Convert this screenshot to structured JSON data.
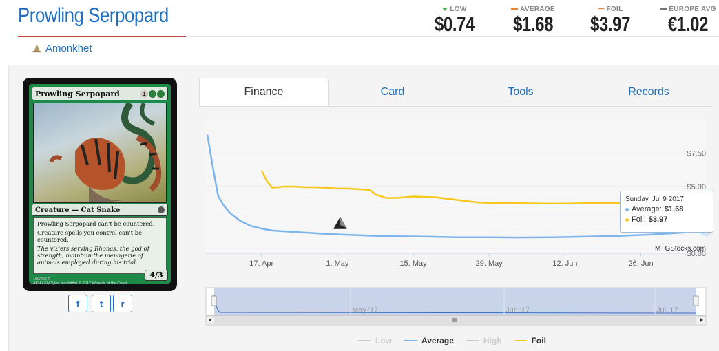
{
  "header": {
    "title": "Prowling Serpopard",
    "set_name": "Amonkhet"
  },
  "prices": [
    {
      "label": "LOW",
      "value": "$0.74",
      "indicator": "triangle-down",
      "color": "#4aa94a"
    },
    {
      "label": "AVERAGE",
      "value": "$1.68",
      "indicator": "bar",
      "color": "#e3873b"
    },
    {
      "label": "FOIL",
      "value": "$3.97",
      "indicator": "arc",
      "color": "#e3873b"
    },
    {
      "label": "EUROPE AVG",
      "value": "€1.02",
      "indicator": "bar",
      "color": "#777777"
    }
  ],
  "card": {
    "name": "Prowling Serpopard",
    "mana_generic": "1",
    "type_line": "Creature — Cat Snake",
    "rules_1": "Prowling Serpopard can't be countered.",
    "rules_2": "Creature spells you control can't be countered.",
    "flavor": "The viziers serving Rhonas, the god of strength, maintain the menagerie of animals employed during his trial.",
    "pt": "4/3",
    "collector": "180/269 R",
    "line2": "AKH • EN",
    "artist": "Tyler Jacobson",
    "copyright": "™ & © 2017 Wizards of the Coast"
  },
  "share": [
    {
      "icon": "facebook-icon",
      "glyph": "f"
    },
    {
      "icon": "twitter-icon",
      "glyph": "t"
    },
    {
      "icon": "reddit-icon",
      "glyph": "r"
    }
  ],
  "tabs": [
    "Finance",
    "Card",
    "Tools",
    "Records"
  ],
  "tooltip": {
    "date": "Sunday, Jul 9 2017",
    "average_label": "Average:",
    "average_value": "$1.68",
    "foil_label": "Foil:",
    "foil_value": "$3.97"
  },
  "credit": "MTGStocks.com",
  "legend": [
    {
      "name": "Low",
      "color": "#cccccc",
      "active": false
    },
    {
      "name": "Average",
      "color": "#7cb5ec",
      "active": true
    },
    {
      "name": "High",
      "color": "#cccccc",
      "active": false
    },
    {
      "name": "Foil",
      "color": "#f7c81e",
      "active": true
    }
  ],
  "chart_data": {
    "type": "line",
    "x_tick_labels": [
      "17. Apr",
      "1. May",
      "15. May",
      "29. May",
      "12. Jun",
      "26. Jun"
    ],
    "y_tick_labels": [
      "$7.50",
      "$5.00",
      "$2.50",
      "$0.00"
    ],
    "ylim": [
      0,
      10
    ],
    "navigator_labels": [
      "May '17",
      "Jun '17",
      "Jul '17"
    ],
    "series": [
      {
        "name": "Average",
        "color": "#7cb5ec",
        "x_days": [
          0,
          1,
          2,
          3,
          4,
          5,
          6,
          8,
          10,
          12,
          14,
          16,
          18,
          20,
          22,
          24,
          26,
          28,
          30,
          34,
          40,
          46,
          52,
          58,
          64,
          70,
          76,
          82,
          88,
          92
        ],
        "values": [
          8.9,
          6.5,
          4.3,
          3.6,
          3.1,
          2.75,
          2.45,
          2.05,
          1.85,
          1.7,
          1.65,
          1.6,
          1.55,
          1.5,
          1.45,
          1.42,
          1.38,
          1.35,
          1.32,
          1.28,
          1.25,
          1.2,
          1.2,
          1.18,
          1.2,
          1.25,
          1.3,
          1.4,
          1.55,
          1.68
        ]
      },
      {
        "name": "Foil",
        "color": "#f7c81e",
        "x_days": [
          10,
          11,
          12,
          14,
          16,
          18,
          20,
          22,
          24,
          26,
          28,
          30,
          31,
          33,
          35,
          38,
          42,
          46,
          50,
          54,
          58,
          62,
          66,
          70,
          74,
          78,
          82,
          86,
          90,
          92
        ],
        "values": [
          6.2,
          5.4,
          4.9,
          5.0,
          5.0,
          4.95,
          4.95,
          4.9,
          4.85,
          4.85,
          4.8,
          4.75,
          4.4,
          4.15,
          4.15,
          4.25,
          4.2,
          4.0,
          3.8,
          3.75,
          3.75,
          3.72,
          3.72,
          3.75,
          3.75,
          3.75,
          3.78,
          3.8,
          3.9,
          3.97
        ]
      }
    ]
  }
}
